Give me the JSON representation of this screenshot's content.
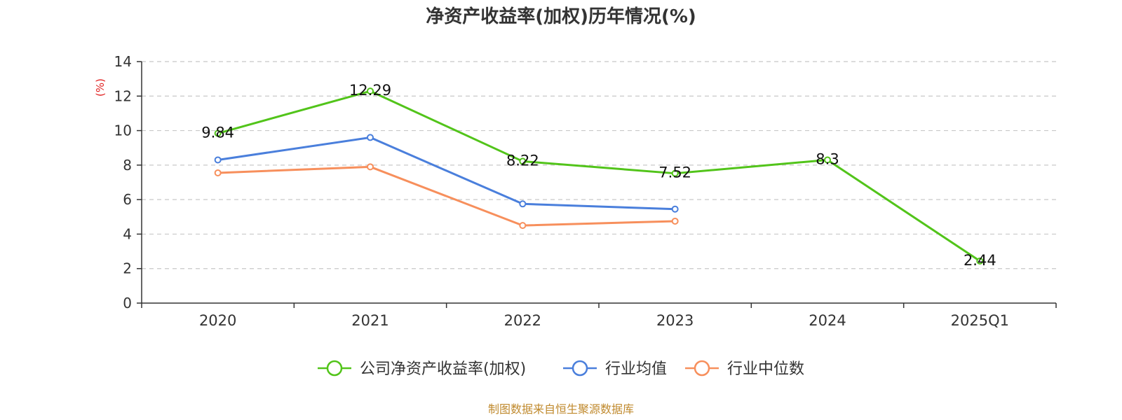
{
  "chart_data": {
    "type": "line",
    "title": "净资产收益率(加权)历年情况(%)",
    "ylabel": "(%)",
    "xlabel": "",
    "categories": [
      "2020",
      "2021",
      "2022",
      "2023",
      "2024",
      "2025Q1"
    ],
    "ylim": [
      0,
      14
    ],
    "yticks": [
      0,
      2,
      4,
      6,
      8,
      10,
      12,
      14
    ],
    "grid": true,
    "legend_position": "bottom-center",
    "series": [
      {
        "name": "公司净资产收益率(加权)",
        "color": "#52c41a",
        "values": [
          9.84,
          12.29,
          8.22,
          7.52,
          8.3,
          2.44
        ],
        "data_labels": [
          "9.84",
          "12.29",
          "8.22",
          "7.52",
          "8.3",
          "2.44"
        ]
      },
      {
        "name": "行业均值",
        "color": "#4a7fdc",
        "values": [
          8.3,
          9.6,
          5.75,
          5.45,
          null,
          null
        ]
      },
      {
        "name": "行业中位数",
        "color": "#f78f5c",
        "values": [
          7.55,
          7.9,
          4.5,
          4.75,
          null,
          null
        ]
      }
    ]
  },
  "source_text": "制图数据来自恒生聚源数据库"
}
